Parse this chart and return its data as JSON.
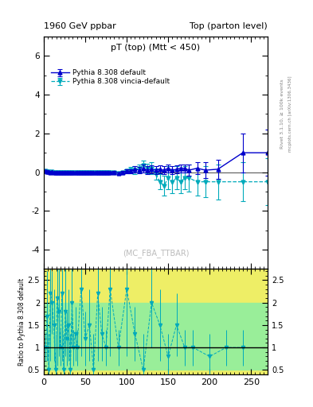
{
  "title_left": "1960 GeV ppbar",
  "title_right": "Top (parton level)",
  "plot_title": "pT (top) (Mtt < 450)",
  "watermark": "(MC_FBA_TTBAR)",
  "rivet_label": "Rivet 3.1.10, ≥ 100k events",
  "mcplots_label": "mcplots.cern.ch [arXiv:1306.3436]",
  "ylabel_ratio": "Ratio to Pythia 8.308 default",
  "legend1": "Pythia 8.308 default",
  "legend2": "Pythia 8.308 vincia-default",
  "color1": "#0000cc",
  "color2": "#00aabb",
  "xlim": [
    0,
    270
  ],
  "ylim_main": [
    -5,
    7
  ],
  "ylim_ratio": [
    0.4,
    2.75
  ],
  "yticks_main": [
    -4,
    -2,
    0,
    2,
    4,
    6
  ],
  "yticks_ratio": [
    0.5,
    1.0,
    1.5,
    2.0,
    2.5
  ],
  "bg_green": "#99ee99",
  "bg_yellow": "#eeee66",
  "main_x": [
    2,
    4,
    6,
    8,
    10,
    12,
    14,
    16,
    18,
    20,
    22,
    24,
    26,
    28,
    30,
    32,
    34,
    36,
    38,
    40,
    42,
    44,
    46,
    48,
    50,
    52,
    54,
    56,
    58,
    60,
    62,
    64,
    66,
    68,
    70,
    72,
    74,
    76,
    78,
    80,
    85,
    90,
    95,
    100,
    105,
    110,
    115,
    120,
    125,
    130,
    135,
    140,
    145,
    150,
    155,
    160,
    165,
    170,
    175,
    185,
    195,
    210,
    240,
    270
  ],
  "main_y1": [
    0.05,
    0.02,
    0.01,
    0.0,
    0.01,
    0.0,
    0.0,
    0.0,
    0.0,
    0.0,
    0.0,
    0.0,
    0.0,
    0.0,
    0.0,
    0.0,
    0.0,
    0.0,
    0.0,
    0.0,
    0.0,
    0.0,
    0.0,
    0.0,
    0.0,
    0.0,
    0.0,
    0.0,
    0.0,
    0.0,
    0.0,
    0.0,
    0.0,
    0.0,
    0.0,
    0.0,
    0.0,
    0.0,
    0.0,
    0.0,
    0.0,
    -0.05,
    0.0,
    0.05,
    0.05,
    0.15,
    0.1,
    0.2,
    0.1,
    0.15,
    0.1,
    0.15,
    0.1,
    0.2,
    0.1,
    0.15,
    0.2,
    0.2,
    0.1,
    0.2,
    0.1,
    0.15,
    1.0,
    1.0
  ],
  "main_y1_err": [
    0.05,
    0.03,
    0.02,
    0.02,
    0.02,
    0.02,
    0.02,
    0.02,
    0.02,
    0.02,
    0.02,
    0.02,
    0.02,
    0.02,
    0.02,
    0.02,
    0.02,
    0.02,
    0.02,
    0.02,
    0.02,
    0.02,
    0.02,
    0.02,
    0.02,
    0.02,
    0.02,
    0.02,
    0.02,
    0.02,
    0.02,
    0.02,
    0.02,
    0.02,
    0.02,
    0.02,
    0.02,
    0.02,
    0.02,
    0.02,
    0.05,
    0.05,
    0.05,
    0.1,
    0.1,
    0.15,
    0.15,
    0.2,
    0.2,
    0.2,
    0.2,
    0.2,
    0.2,
    0.2,
    0.2,
    0.2,
    0.2,
    0.2,
    0.3,
    0.3,
    0.4,
    0.5,
    1.0,
    1.2
  ],
  "main_y2": [
    0.05,
    0.02,
    0.01,
    0.0,
    0.01,
    0.0,
    0.0,
    0.0,
    0.0,
    0.0,
    0.0,
    0.0,
    0.0,
    0.0,
    0.0,
    0.0,
    0.0,
    0.0,
    0.0,
    0.0,
    0.0,
    0.0,
    0.0,
    0.0,
    0.0,
    0.0,
    0.0,
    0.0,
    0.0,
    0.0,
    0.0,
    0.0,
    0.0,
    0.0,
    0.0,
    0.0,
    0.0,
    0.0,
    0.0,
    0.0,
    0.0,
    -0.05,
    0.0,
    0.05,
    0.1,
    0.1,
    0.2,
    0.35,
    0.2,
    0.2,
    -0.1,
    -0.5,
    -0.7,
    -0.3,
    -0.5,
    -0.3,
    -0.5,
    -0.3,
    -0.3,
    -0.5,
    -0.5,
    -0.5,
    -0.5,
    -0.5
  ],
  "main_y2_err": [
    0.05,
    0.03,
    0.02,
    0.02,
    0.02,
    0.02,
    0.02,
    0.02,
    0.02,
    0.02,
    0.02,
    0.02,
    0.02,
    0.02,
    0.02,
    0.02,
    0.02,
    0.02,
    0.02,
    0.02,
    0.02,
    0.02,
    0.02,
    0.02,
    0.02,
    0.02,
    0.02,
    0.02,
    0.02,
    0.02,
    0.02,
    0.02,
    0.02,
    0.02,
    0.02,
    0.02,
    0.02,
    0.02,
    0.02,
    0.02,
    0.05,
    0.05,
    0.05,
    0.1,
    0.15,
    0.2,
    0.2,
    0.25,
    0.25,
    0.3,
    0.3,
    0.4,
    0.5,
    0.6,
    0.6,
    0.6,
    0.6,
    0.6,
    0.7,
    0.7,
    0.8,
    0.9,
    1.0,
    1.2
  ],
  "ratio_x": [
    2,
    4,
    6,
    8,
    10,
    12,
    14,
    16,
    18,
    20,
    22,
    24,
    26,
    28,
    30,
    32,
    34,
    36,
    38,
    40,
    45,
    50,
    55,
    60,
    65,
    70,
    75,
    80,
    90,
    100,
    110,
    120,
    130,
    140,
    150,
    160,
    170,
    180,
    200,
    220,
    240
  ],
  "ratio_y": [
    1.0,
    1.7,
    0.5,
    2.2,
    2.0,
    1.5,
    0.5,
    2.1,
    1.8,
    1.0,
    2.2,
    0.5,
    1.8,
    1.2,
    1.5,
    0.5,
    2.0,
    1.0,
    1.3,
    1.0,
    2.3,
    1.2,
    1.5,
    0.5,
    2.2,
    1.3,
    1.0,
    2.3,
    1.0,
    2.3,
    1.3,
    0.5,
    2.0,
    1.5,
    0.8,
    1.5,
    1.0,
    1.0,
    0.8,
    1.0,
    1.0
  ],
  "ratio_err_up": [
    0.3,
    1.0,
    0.8,
    1.5,
    0.7,
    0.8,
    0.8,
    1.5,
    1.0,
    0.4,
    1.5,
    0.8,
    1.0,
    0.6,
    0.8,
    0.8,
    1.0,
    0.4,
    0.6,
    0.4,
    1.5,
    0.6,
    0.8,
    0.8,
    1.5,
    0.6,
    0.4,
    1.5,
    0.4,
    1.5,
    0.6,
    0.8,
    1.0,
    0.8,
    0.5,
    0.7,
    0.4,
    0.4,
    0.5,
    0.4,
    0.4
  ],
  "ratio_err_dn": [
    0.3,
    1.0,
    0.3,
    1.5,
    0.7,
    0.8,
    0.3,
    1.5,
    1.0,
    0.4,
    1.5,
    0.3,
    1.0,
    0.6,
    0.8,
    0.3,
    1.0,
    0.4,
    0.6,
    0.4,
    1.5,
    0.6,
    0.8,
    0.3,
    1.5,
    0.6,
    0.4,
    1.5,
    0.4,
    1.5,
    0.6,
    0.3,
    1.0,
    0.8,
    0.5,
    0.7,
    0.4,
    0.4,
    0.5,
    0.4,
    0.4
  ],
  "green_band_y1": 0.5,
  "green_band_y2": 2.0,
  "yellow_band_y1": 0.4,
  "yellow_band_y2": 2.75
}
